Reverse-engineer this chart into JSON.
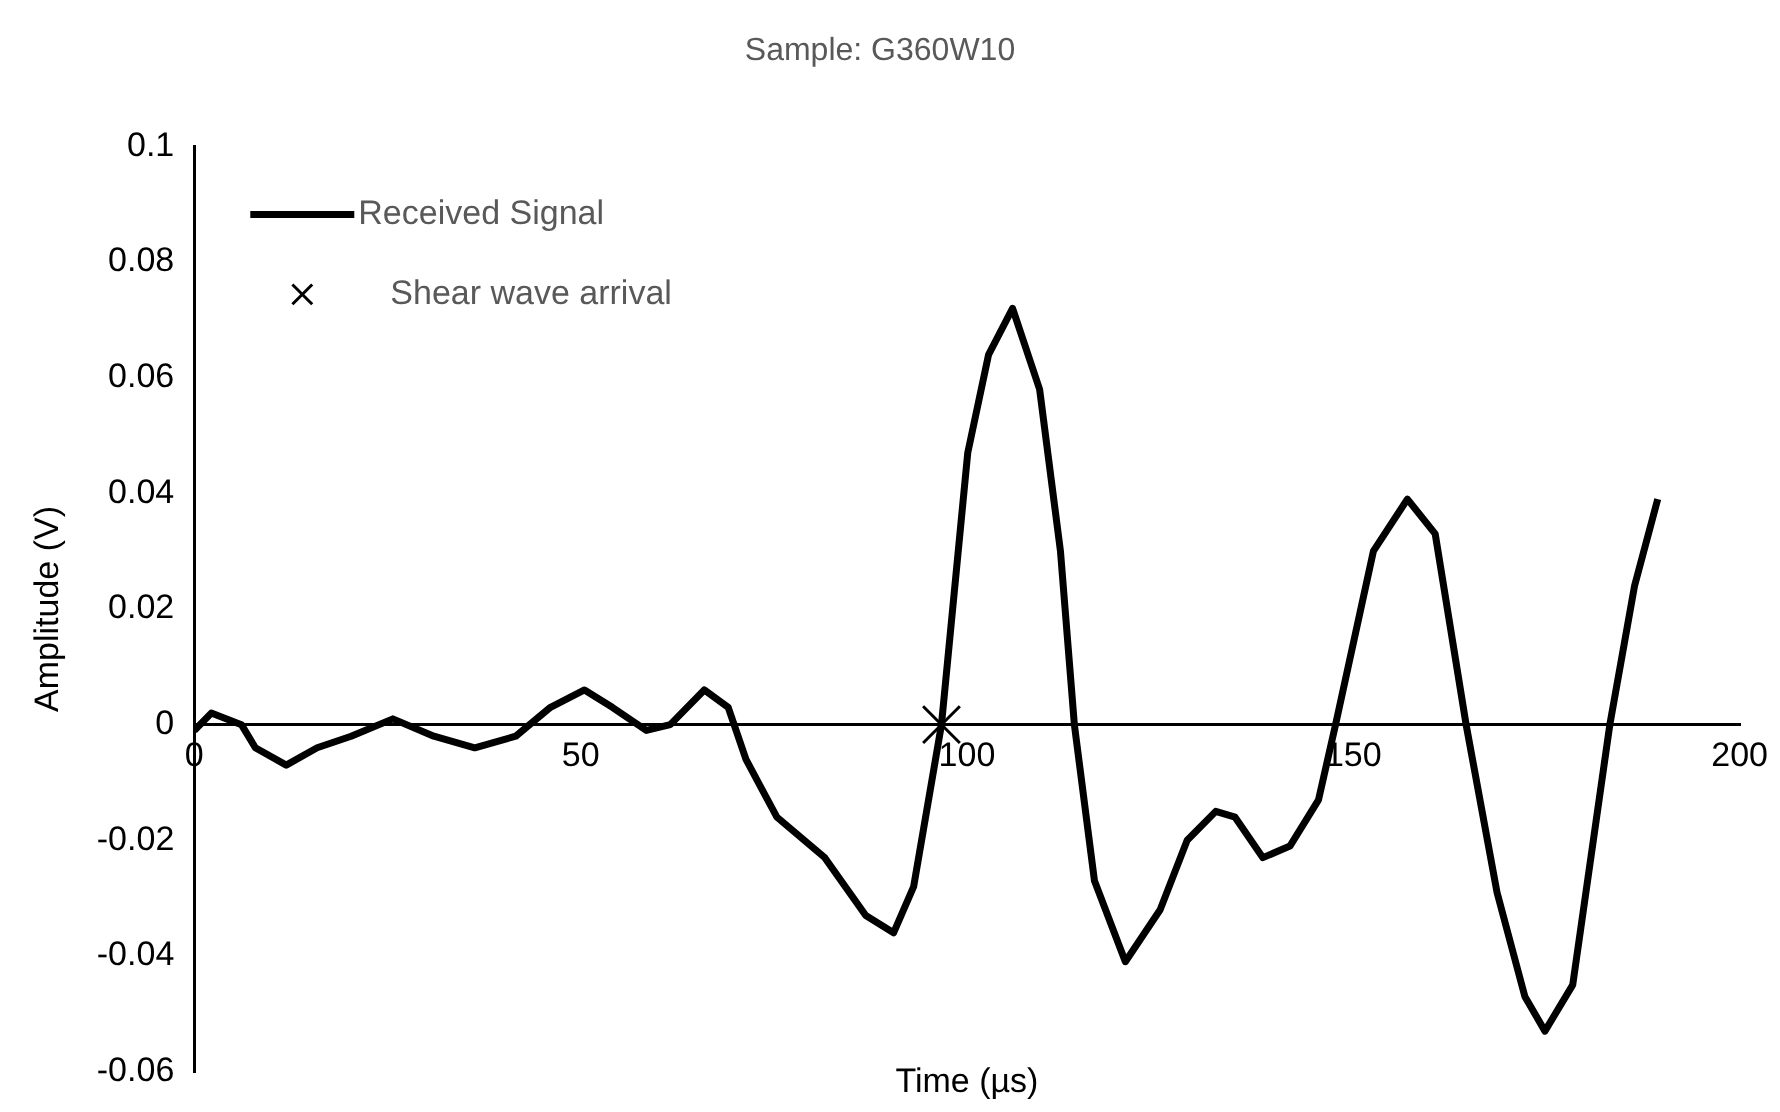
{
  "chart_data": {
    "type": "line",
    "title": "Sample: G360W10",
    "xlabel": "Time (µs)",
    "ylabel": "Amplitude (V)",
    "xlim": [
      0,
      200
    ],
    "xticks": [
      0,
      50,
      100,
      150,
      200
    ],
    "ylim": [
      -0.06,
      0.1
    ],
    "yticks": [
      -0.06,
      -0.04,
      -0.02,
      0,
      0.02,
      0.04,
      0.06,
      0.08,
      0.1
    ],
    "grid": false,
    "legend": "top left",
    "series": [
      {
        "name": "Received Signal",
        "type": "line",
        "color": "#000000",
        "marker": "none",
        "x": [
          0,
          2.2,
          6.1,
          7.9,
          11.9,
          15.9,
          20.3,
          25.7,
          31.0,
          36.3,
          41.6,
          46.1,
          50.5,
          54.1,
          58.5,
          61.6,
          66.0,
          69.1,
          71.4,
          75.4,
          81.6,
          86.9,
          90.5,
          93.1,
          96.7,
          100.1,
          102.8,
          105.9,
          109.4,
          112.1,
          113.9,
          116.5,
          120.5,
          125.0,
          128.5,
          132.2,
          134.7,
          138.3,
          141.8,
          145.5,
          147.7,
          152.6,
          157.0,
          160.6,
          164.6,
          168.6,
          172.2,
          174.8,
          178.4,
          183.2,
          186.4,
          189.4
        ],
        "values": [
          -0.001,
          0.002,
          0.0,
          -0.004,
          -0.007,
          -0.004,
          -0.002,
          0.001,
          -0.002,
          -0.004,
          -0.002,
          0.003,
          0.006,
          0.003,
          -0.001,
          0.0,
          0.006,
          0.003,
          -0.006,
          -0.016,
          -0.023,
          -0.033,
          -0.036,
          -0.028,
          0.0,
          0.047,
          0.064,
          0.072,
          0.058,
          0.03,
          0.0,
          -0.027,
          -0.041,
          -0.032,
          -0.02,
          -0.015,
          -0.016,
          -0.023,
          -0.021,
          -0.013,
          0.0,
          0.03,
          0.039,
          0.033,
          0.0,
          -0.029,
          -0.047,
          -0.053,
          -0.045,
          0.0,
          0.024,
          0.039
        ]
      },
      {
        "name": "Shear wave arrival",
        "type": "scatter",
        "color": "#000000",
        "marker": "cross",
        "x": [
          96.7
        ],
        "values": [
          0.0
        ]
      }
    ]
  }
}
